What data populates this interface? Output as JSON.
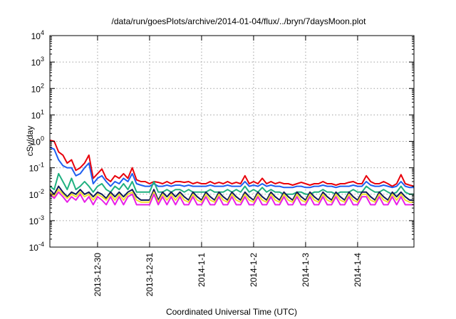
{
  "chart_data": {
    "type": "line",
    "title": "/data/run/goesPlots/archive/2014-01-04/flux/../bryn/7daysMoon.plot",
    "xlabel": "Coordinated Universal Time (UTC)",
    "ylabel": "cSv/day",
    "yscale": "log",
    "ylim": [
      0.0001,
      10000
    ],
    "xlim": [
      "2013-12-29 02:00",
      "2014-01-05 02:00"
    ],
    "grid": true,
    "legend": "none",
    "y_tick_labels": [
      {
        "base": "10",
        "exp": "-4"
      },
      {
        "base": "10",
        "exp": "-3"
      },
      {
        "base": "10",
        "exp": "-2"
      },
      {
        "base": "10",
        "exp": "-1"
      },
      {
        "base": "10",
        "exp": "0"
      },
      {
        "base": "10",
        "exp": "1"
      },
      {
        "base": "10",
        "exp": "2"
      },
      {
        "base": "10",
        "exp": "3"
      },
      {
        "base": "10",
        "exp": "4"
      }
    ],
    "x_ticks": [
      {
        "label": "2013-12-30",
        "time": "2013-12-30 00:00"
      },
      {
        "label": "2013-12-31",
        "time": "2013-12-31 00:00"
      },
      {
        "label": "2014-1-1",
        "time": "2014-01-01 00:00"
      },
      {
        "label": "2014-1-2",
        "time": "2014-01-02 00:00"
      },
      {
        "label": "2014-1-3",
        "time": "2014-01-03 00:00"
      },
      {
        "label": "2014-1-4",
        "time": "2014-01-04 00:00"
      }
    ],
    "x": [
      "2013-12-29 02:00",
      "2013-12-29 04:00",
      "2013-12-29 06:00",
      "2013-12-29 08:00",
      "2013-12-29 10:00",
      "2013-12-29 12:00",
      "2013-12-29 14:00",
      "2013-12-29 16:00",
      "2013-12-29 18:00",
      "2013-12-29 20:00",
      "2013-12-29 22:00",
      "2013-12-30 00:00",
      "2013-12-30 02:00",
      "2013-12-30 04:00",
      "2013-12-30 06:00",
      "2013-12-30 08:00",
      "2013-12-30 10:00",
      "2013-12-30 12:00",
      "2013-12-30 14:00",
      "2013-12-30 16:00",
      "2013-12-30 18:00",
      "2013-12-30 20:00",
      "2013-12-30 22:00",
      "2013-12-31 00:00",
      "2013-12-31 02:00",
      "2013-12-31 04:00",
      "2013-12-31 06:00",
      "2013-12-31 08:00",
      "2013-12-31 10:00",
      "2013-12-31 12:00",
      "2013-12-31 14:00",
      "2013-12-31 16:00",
      "2013-12-31 18:00",
      "2013-12-31 20:00",
      "2013-12-31 22:00",
      "2014-01-01 00:00",
      "2014-01-01 02:00",
      "2014-01-01 04:00",
      "2014-01-01 06:00",
      "2014-01-01 08:00",
      "2014-01-01 10:00",
      "2014-01-01 12:00",
      "2014-01-01 14:00",
      "2014-01-01 16:00",
      "2014-01-01 18:00",
      "2014-01-01 20:00",
      "2014-01-01 22:00",
      "2014-01-02 00:00",
      "2014-01-02 02:00",
      "2014-01-02 04:00",
      "2014-01-02 06:00",
      "2014-01-02 08:00",
      "2014-01-02 10:00",
      "2014-01-02 12:00",
      "2014-01-02 14:00",
      "2014-01-02 16:00",
      "2014-01-02 18:00",
      "2014-01-02 20:00",
      "2014-01-02 22:00",
      "2014-01-03 00:00",
      "2014-01-03 02:00",
      "2014-01-03 04:00",
      "2014-01-03 06:00",
      "2014-01-03 08:00",
      "2014-01-03 10:00",
      "2014-01-03 12:00",
      "2014-01-03 14:00",
      "2014-01-03 16:00",
      "2014-01-03 18:00",
      "2014-01-03 20:00",
      "2014-01-03 22:00",
      "2014-01-04 00:00",
      "2014-01-04 02:00",
      "2014-01-04 04:00",
      "2014-01-04 06:00",
      "2014-01-04 08:00",
      "2014-01-04 10:00",
      "2014-01-04 12:00",
      "2014-01-04 14:00",
      "2014-01-04 16:00",
      "2014-01-04 18:00",
      "2014-01-04 20:00",
      "2014-01-04 22:00",
      "2014-01-05 00:00",
      "2014-01-05 02:00"
    ],
    "series": [
      {
        "color": "#e8000b",
        "values": [
          1.1,
          1.0,
          0.4,
          0.3,
          0.15,
          0.2,
          0.08,
          0.1,
          0.15,
          0.3,
          0.04,
          0.06,
          0.09,
          0.04,
          0.03,
          0.05,
          0.04,
          0.06,
          0.04,
          0.1,
          0.035,
          0.03,
          0.03,
          0.025,
          0.03,
          0.028,
          0.025,
          0.03,
          0.025,
          0.03,
          0.03,
          0.028,
          0.03,
          0.025,
          0.028,
          0.025,
          0.025,
          0.03,
          0.025,
          0.028,
          0.025,
          0.03,
          0.025,
          0.028,
          0.025,
          0.05,
          0.025,
          0.03,
          0.025,
          0.04,
          0.025,
          0.03,
          0.025,
          0.028,
          0.025,
          0.025,
          0.022,
          0.025,
          0.028,
          0.025,
          0.022,
          0.025,
          0.025,
          0.03,
          0.025,
          0.025,
          0.022,
          0.025,
          0.025,
          0.028,
          0.03,
          0.025,
          0.025,
          0.05,
          0.03,
          0.025,
          0.025,
          0.03,
          0.025,
          0.02,
          0.025,
          0.055,
          0.025,
          0.022,
          0.02
        ]
      },
      {
        "color": "#1f5ff0",
        "values": [
          0.6,
          0.5,
          0.2,
          0.12,
          0.1,
          0.1,
          0.05,
          0.06,
          0.1,
          0.15,
          0.025,
          0.04,
          0.05,
          0.03,
          0.02,
          0.03,
          0.025,
          0.04,
          0.03,
          0.06,
          0.025,
          0.022,
          0.02,
          0.02,
          0.025,
          0.02,
          0.02,
          0.022,
          0.02,
          0.022,
          0.022,
          0.02,
          0.022,
          0.02,
          0.02,
          0.02,
          0.02,
          0.022,
          0.02,
          0.02,
          0.02,
          0.022,
          0.02,
          0.02,
          0.02,
          0.03,
          0.02,
          0.022,
          0.02,
          0.025,
          0.02,
          0.022,
          0.02,
          0.02,
          0.018,
          0.018,
          0.018,
          0.02,
          0.02,
          0.018,
          0.018,
          0.02,
          0.02,
          0.022,
          0.02,
          0.02,
          0.018,
          0.02,
          0.02,
          0.02,
          0.022,
          0.02,
          0.02,
          0.03,
          0.022,
          0.02,
          0.02,
          0.022,
          0.02,
          0.018,
          0.02,
          0.03,
          0.02,
          0.018,
          0.018
        ]
      },
      {
        "color": "#20b080",
        "values": [
          0.02,
          0.015,
          0.06,
          0.03,
          0.015,
          0.04,
          0.015,
          0.02,
          0.03,
          0.02,
          0.012,
          0.02,
          0.025,
          0.015,
          0.012,
          0.02,
          0.015,
          0.025,
          0.015,
          0.03,
          0.012,
          0.012,
          0.012,
          0.012,
          0.03,
          0.012,
          0.012,
          0.015,
          0.012,
          0.015,
          0.015,
          0.012,
          0.015,
          0.012,
          0.012,
          0.012,
          0.012,
          0.015,
          0.012,
          0.012,
          0.012,
          0.015,
          0.012,
          0.015,
          0.012,
          0.02,
          0.012,
          0.015,
          0.012,
          0.018,
          0.012,
          0.015,
          0.012,
          0.012,
          0.01,
          0.01,
          0.01,
          0.012,
          0.012,
          0.01,
          0.01,
          0.012,
          0.012,
          0.015,
          0.012,
          0.012,
          0.01,
          0.012,
          0.012,
          0.012,
          0.015,
          0.012,
          0.012,
          0.02,
          0.015,
          0.012,
          0.012,
          0.015,
          0.012,
          0.01,
          0.012,
          0.02,
          0.012,
          0.01,
          0.01
        ]
      },
      {
        "color": "#111a5a",
        "values": [
          0.015,
          0.01,
          0.02,
          0.012,
          0.008,
          0.012,
          0.01,
          0.015,
          0.01,
          0.012,
          0.008,
          0.012,
          0.01,
          0.007,
          0.012,
          0.008,
          0.012,
          0.008,
          0.012,
          0.015,
          0.008,
          0.006,
          0.006,
          0.006,
          0.015,
          0.006,
          0.012,
          0.008,
          0.012,
          0.008,
          0.012,
          0.008,
          0.006,
          0.012,
          0.008,
          0.006,
          0.012,
          0.008,
          0.006,
          0.012,
          0.008,
          0.006,
          0.012,
          0.008,
          0.006,
          0.012,
          0.008,
          0.006,
          0.012,
          0.008,
          0.006,
          0.012,
          0.008,
          0.006,
          0.012,
          0.008,
          0.006,
          0.012,
          0.008,
          0.006,
          0.012,
          0.008,
          0.006,
          0.012,
          0.008,
          0.006,
          0.012,
          0.008,
          0.006,
          0.012,
          0.008,
          0.006,
          0.012,
          0.012,
          0.008,
          0.006,
          0.012,
          0.008,
          0.006,
          0.012,
          0.008,
          0.012,
          0.008,
          0.006,
          0.006
        ]
      },
      {
        "color": "#f0e030",
        "values": [
          0.012,
          0.008,
          0.015,
          0.01,
          0.007,
          0.01,
          0.008,
          0.012,
          0.008,
          0.01,
          0.006,
          0.01,
          0.008,
          0.006,
          0.01,
          0.006,
          0.01,
          0.006,
          0.01,
          0.012,
          0.006,
          0.005,
          0.005,
          0.005,
          0.012,
          0.005,
          0.01,
          0.006,
          0.01,
          0.006,
          0.01,
          0.006,
          0.005,
          0.01,
          0.006,
          0.005,
          0.01,
          0.006,
          0.005,
          0.01,
          0.006,
          0.005,
          0.01,
          0.006,
          0.005,
          0.01,
          0.006,
          0.005,
          0.01,
          0.006,
          0.005,
          0.01,
          0.006,
          0.005,
          0.01,
          0.006,
          0.005,
          0.01,
          0.006,
          0.005,
          0.01,
          0.006,
          0.005,
          0.01,
          0.006,
          0.005,
          0.01,
          0.006,
          0.005,
          0.01,
          0.006,
          0.005,
          0.01,
          0.01,
          0.006,
          0.005,
          0.01,
          0.006,
          0.005,
          0.01,
          0.006,
          0.01,
          0.006,
          0.005,
          0.005
        ]
      },
      {
        "color": "#e820e8",
        "values": [
          0.01,
          0.007,
          0.012,
          0.008,
          0.005,
          0.008,
          0.006,
          0.01,
          0.005,
          0.008,
          0.004,
          0.008,
          0.006,
          0.004,
          0.008,
          0.004,
          0.008,
          0.004,
          0.008,
          0.01,
          0.004,
          0.004,
          0.004,
          0.004,
          0.01,
          0.004,
          0.008,
          0.004,
          0.008,
          0.004,
          0.008,
          0.004,
          0.004,
          0.008,
          0.004,
          0.004,
          0.008,
          0.004,
          0.004,
          0.008,
          0.004,
          0.004,
          0.008,
          0.004,
          0.004,
          0.008,
          0.004,
          0.004,
          0.008,
          0.004,
          0.004,
          0.008,
          0.004,
          0.004,
          0.008,
          0.004,
          0.004,
          0.008,
          0.004,
          0.004,
          0.008,
          0.004,
          0.004,
          0.008,
          0.004,
          0.004,
          0.008,
          0.004,
          0.004,
          0.008,
          0.004,
          0.004,
          0.008,
          0.008,
          0.004,
          0.004,
          0.008,
          0.004,
          0.004,
          0.008,
          0.004,
          0.008,
          0.004,
          0.004,
          0.004
        ]
      }
    ]
  }
}
